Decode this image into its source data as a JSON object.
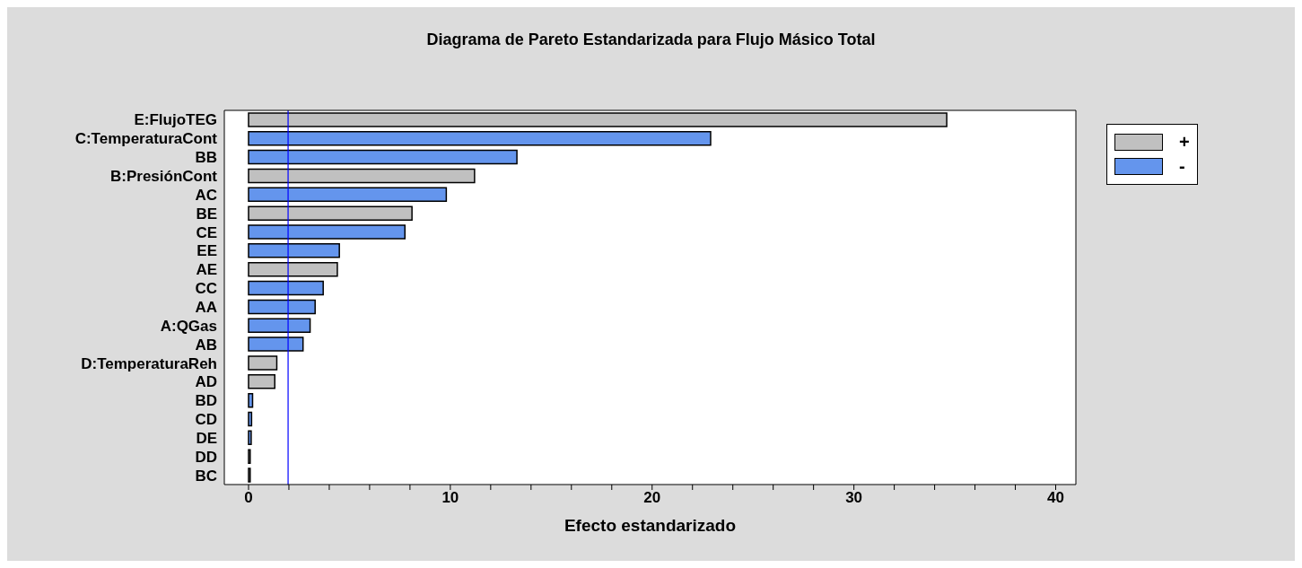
{
  "chart_data": {
    "type": "bar",
    "orientation": "horizontal",
    "stacked": true,
    "title": "Diagrama de Pareto Estandarizada para Flujo Másico Total",
    "xlabel": "Efecto estandarizado",
    "categories": [
      "E:FlujoTEG",
      "C:TemperaturaCont",
      "BB",
      "B:PresiónCont",
      "AC",
      "BE",
      "CE",
      "EE",
      "AE",
      "CC",
      "AA",
      "A:QGas",
      "AB",
      "D:TemperaturaReh",
      "AD",
      "BD",
      "CD",
      "DE",
      "DD",
      "BC"
    ],
    "series": [
      {
        "name": "+",
        "color": "#c0c0c0",
        "values": [
          34.6,
          null,
          null,
          11.2,
          null,
          8.1,
          null,
          null,
          4.4,
          null,
          null,
          null,
          null,
          1.4,
          1.3,
          null,
          null,
          null,
          0.08,
          0.08
        ]
      },
      {
        "name": "-",
        "color": "#6495ed",
        "values": [
          null,
          22.9,
          13.3,
          null,
          9.8,
          null,
          7.75,
          4.5,
          null,
          3.7,
          3.3,
          3.05,
          2.7,
          null,
          null,
          0.2,
          0.15,
          0.13,
          null,
          null
        ]
      }
    ],
    "xlim": [
      -1.2,
      41
    ],
    "xticks": [
      0,
      {
        "value": 2,
        "label": null
      },
      {
        "value": 4,
        "label": null
      },
      {
        "value": 6,
        "label": null
      },
      {
        "value": 8,
        "label": null
      },
      10,
      {
        "value": 12,
        "label": null
      },
      {
        "value": 14,
        "label": null
      },
      {
        "value": 16,
        "label": null
      },
      {
        "value": 18,
        "label": null
      },
      20,
      {
        "value": 22,
        "label": null
      },
      {
        "value": 24,
        "label": null
      },
      {
        "value": 26,
        "label": null
      },
      {
        "value": 28,
        "label": null
      },
      30,
      {
        "value": 32,
        "label": null
      },
      {
        "value": 34,
        "label": null
      },
      {
        "value": 36,
        "label": null
      },
      {
        "value": 38,
        "label": null
      },
      40
    ],
    "ref_lines": [
      {
        "axis": "x",
        "value": 1.96,
        "color": "#0000ff"
      }
    ],
    "grid": false,
    "legend": "right"
  }
}
